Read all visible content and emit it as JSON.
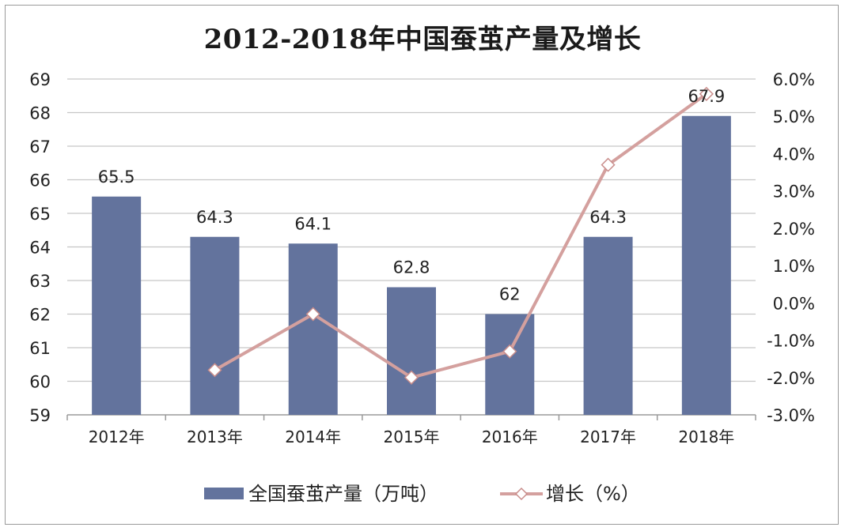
{
  "chart_data": {
    "type": "bar",
    "title": "2012-2018年中国蚕茧产量及增长",
    "categories": [
      "2012年",
      "2013年",
      "2014年",
      "2015年",
      "2016年",
      "2017年",
      "2018年"
    ],
    "series": [
      {
        "name": "全国蚕茧产量（万吨）",
        "type": "bar",
        "axis": "left",
        "values": [
          65.5,
          64.3,
          64.1,
          62.8,
          62,
          64.3,
          67.9
        ],
        "data_labels": [
          "65.5",
          "64.3",
          "64.1",
          "62.8",
          "62",
          "64.3",
          "67.9"
        ]
      },
      {
        "name": "增长（%）",
        "type": "line",
        "axis": "right",
        "values": [
          null,
          -1.8,
          -0.3,
          -2.0,
          -1.3,
          3.7,
          5.6
        ]
      }
    ],
    "y_left": {
      "ylim": [
        59,
        69
      ],
      "ticks": [
        "59",
        "60",
        "61",
        "62",
        "63",
        "64",
        "65",
        "66",
        "67",
        "68",
        "69"
      ]
    },
    "y_right": {
      "ylim": [
        -3.0,
        6.0
      ],
      "ticks": [
        "-3.0%",
        "-2.0%",
        "-1.0%",
        "0.0%",
        "1.0%",
        "2.0%",
        "3.0%",
        "4.0%",
        "5.0%",
        "6.0%"
      ]
    },
    "grid": true,
    "legend": "bottom",
    "colors": {
      "bar": "#63739d",
      "line": "#d4a09e",
      "marker_fill": "#ffffff",
      "marker_stroke": "#c98d8b",
      "grid": "#c6c6c6",
      "axis": "#9a9a9a"
    }
  },
  "legend": {
    "bar_label": "全国蚕茧产量（万吨）",
    "line_label": "增长（%）"
  }
}
